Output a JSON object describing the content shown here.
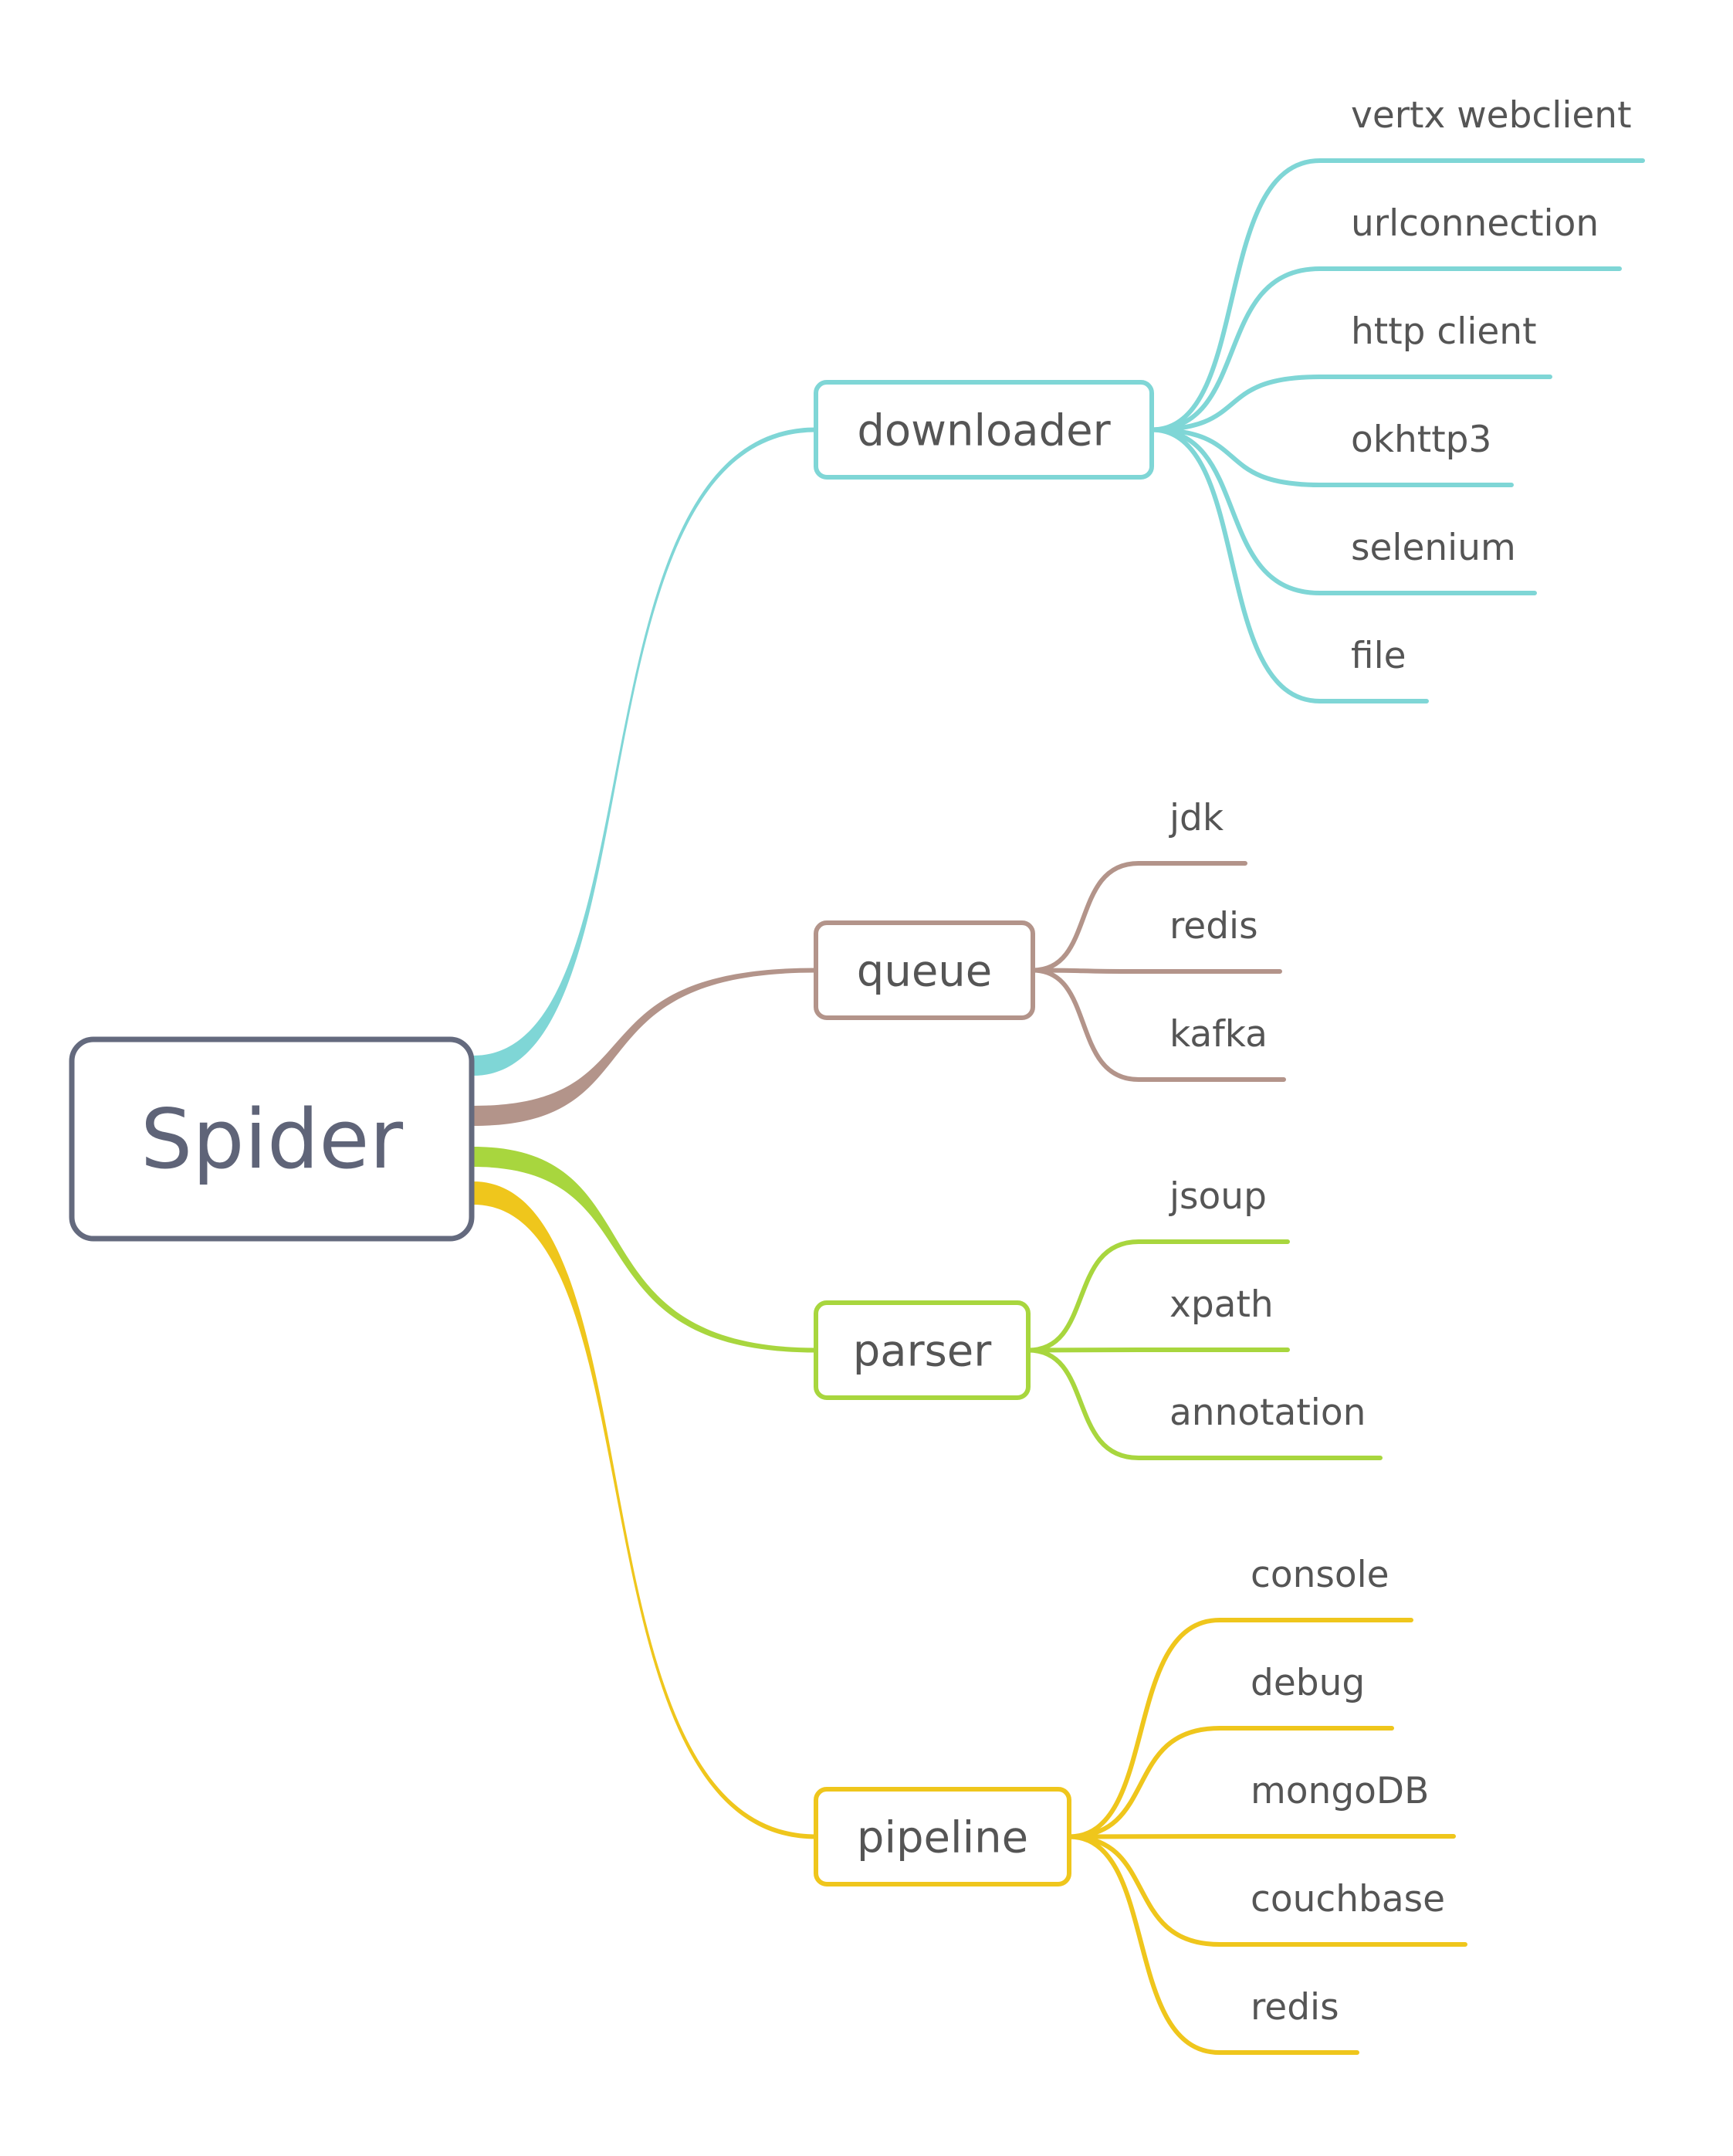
{
  "root": {
    "label": "Spider",
    "color": "#646a7e"
  },
  "branches": [
    {
      "label": "downloader",
      "color": "#7fd6d6",
      "leaves": [
        "vertx webclient",
        "urlconnection",
        "http client",
        "okhttp3",
        "selenium",
        "file"
      ]
    },
    {
      "label": "queue",
      "color": "#b3948a",
      "leaves": [
        "jdk",
        "redis",
        "kafka"
      ]
    },
    {
      "label": "parser",
      "color": "#a8d63e",
      "leaves": [
        "jsoup",
        "xpath",
        "annotation"
      ]
    },
    {
      "label": "pipeline",
      "color": "#efc61c",
      "leaves": [
        "console",
        "debug",
        "mongoDB",
        "couchbase",
        "redis"
      ]
    }
  ]
}
